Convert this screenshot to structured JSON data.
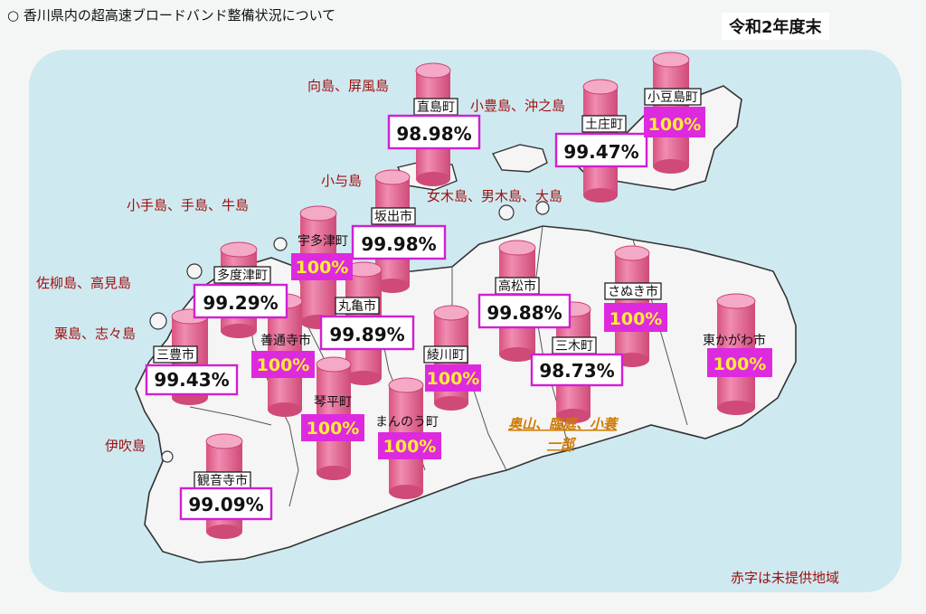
{
  "header": {
    "title": "○ 香川県内の超高速ブロードバンド整備状況について",
    "fiscal_year": "令和2年度末"
  },
  "legend_note": "赤字は未提供地域",
  "colors": {
    "map_bg": "#cfe9f0",
    "land": "#f4f5f4",
    "coast": "#333333",
    "cylinder": "#e7739f",
    "cylinder_top": "#f4a9c6",
    "pct_box_border": "#d21fd3",
    "full_badge_bg": "#dd2adf",
    "full_badge_text": "#ffee33",
    "island_label": "#a01010",
    "underserved_label": "#d07a00"
  },
  "municipalities": [
    {
      "name": "直島町",
      "coverage": "98.98%",
      "full": false
    },
    {
      "name": "土庄町",
      "coverage": "99.47%",
      "full": false
    },
    {
      "name": "小豆島町",
      "coverage": "100%",
      "full": true
    },
    {
      "name": "坂出市",
      "coverage": "99.98%",
      "full": false
    },
    {
      "name": "宇多津町",
      "coverage": "100%",
      "full": true
    },
    {
      "name": "多度津町",
      "coverage": "99.29%",
      "full": false
    },
    {
      "name": "丸亀市",
      "coverage": "99.89%",
      "full": false
    },
    {
      "name": "高松市",
      "coverage": "99.88%",
      "full": false
    },
    {
      "name": "さぬき市",
      "coverage": "100%",
      "full": true
    },
    {
      "name": "東かがわ市",
      "coverage": "100%",
      "full": true
    },
    {
      "name": "善通寺市",
      "coverage": "100%",
      "full": true
    },
    {
      "name": "三豊市",
      "coverage": "99.43%",
      "full": false
    },
    {
      "name": "綾川町",
      "coverage": "100%",
      "full": true
    },
    {
      "name": "三木町",
      "coverage": "98.73%",
      "full": false
    },
    {
      "name": "琴平町",
      "coverage": "100%",
      "full": true
    },
    {
      "name": "まんのう町",
      "coverage": "100%",
      "full": true
    },
    {
      "name": "観音寺市",
      "coverage": "99.09%",
      "full": false
    }
  ],
  "island_labels": [
    "向島、屏風島",
    "小豊島、沖之島",
    "小与島",
    "女木島、男木島、大島",
    "小手島、手島、牛島",
    "佐柳島、高見島",
    "粟島、志々島",
    "伊吹島"
  ],
  "underserved_area": [
    "奥山、臨庭、小蓑",
    "一部"
  ]
}
